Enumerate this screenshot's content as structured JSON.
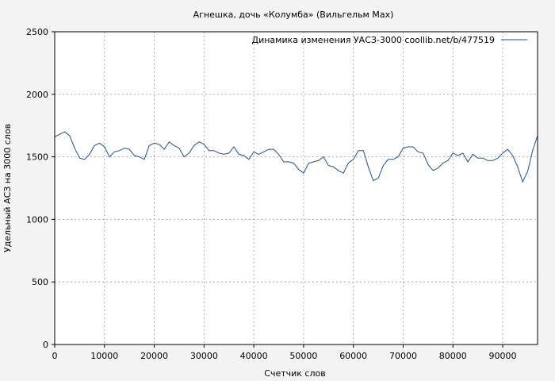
{
  "chart_data": {
    "type": "line",
    "title": "Агнешка, дочь «Колумба» (Вильгельм Мах)",
    "xlabel": "Счетчик слов",
    "ylabel": "Удельный АСЗ на 3000 слов",
    "xlim": [
      0,
      97000
    ],
    "ylim": [
      0,
      2500
    ],
    "x_ticks": [
      0,
      10000,
      20000,
      30000,
      40000,
      50000,
      60000,
      70000,
      80000,
      90000
    ],
    "y_ticks": [
      0,
      500,
      1000,
      1500,
      2000,
      2500
    ],
    "grid": true,
    "legend_position": "top-right",
    "colors": {
      "line": "#1f4e9a",
      "background": "#f4f4f4",
      "grid": "#9a9a9a"
    },
    "series": [
      {
        "name": "Динамика изменения УАСЗ-3000  coollib.net/b/477519",
        "x": [
          0,
          1000,
          2000,
          3000,
          4000,
          5000,
          6000,
          7000,
          8000,
          9000,
          10000,
          11000,
          12000,
          13000,
          14000,
          15000,
          16000,
          17000,
          18000,
          19000,
          20000,
          21000,
          22000,
          23000,
          24000,
          25000,
          26000,
          27000,
          28000,
          29000,
          30000,
          31000,
          32000,
          33000,
          34000,
          35000,
          36000,
          37000,
          38000,
          39000,
          40000,
          41000,
          42000,
          43000,
          44000,
          45000,
          46000,
          47000,
          48000,
          49000,
          50000,
          51000,
          52000,
          53000,
          54000,
          55000,
          56000,
          57000,
          58000,
          59000,
          60000,
          61000,
          62000,
          63000,
          64000,
          65000,
          66000,
          67000,
          68000,
          69000,
          70000,
          71000,
          72000,
          73000,
          74000,
          75000,
          76000,
          77000,
          78000,
          79000,
          80000,
          81000,
          82000,
          83000,
          84000,
          85000,
          86000,
          87000,
          88000,
          89000,
          90000,
          91000,
          92000,
          93000,
          94000,
          95000,
          96000,
          97000
        ],
        "y": [
          1660,
          1680,
          1700,
          1670,
          1570,
          1490,
          1480,
          1520,
          1590,
          1610,
          1580,
          1500,
          1540,
          1550,
          1570,
          1560,
          1510,
          1500,
          1480,
          1590,
          1610,
          1600,
          1560,
          1620,
          1590,
          1570,
          1500,
          1530,
          1590,
          1620,
          1600,
          1550,
          1550,
          1530,
          1520,
          1530,
          1580,
          1520,
          1510,
          1480,
          1540,
          1520,
          1540,
          1560,
          1560,
          1520,
          1460,
          1460,
          1450,
          1400,
          1370,
          1450,
          1460,
          1470,
          1500,
          1430,
          1420,
          1390,
          1370,
          1450,
          1480,
          1550,
          1550,
          1420,
          1310,
          1330,
          1430,
          1480,
          1480,
          1500,
          1570,
          1580,
          1580,
          1540,
          1530,
          1440,
          1390,
          1410,
          1450,
          1470,
          1530,
          1510,
          1530,
          1460,
          1520,
          1490,
          1490,
          1470,
          1470,
          1490,
          1530,
          1560,
          1510,
          1420,
          1300,
          1380,
          1550,
          1670
        ]
      }
    ]
  }
}
